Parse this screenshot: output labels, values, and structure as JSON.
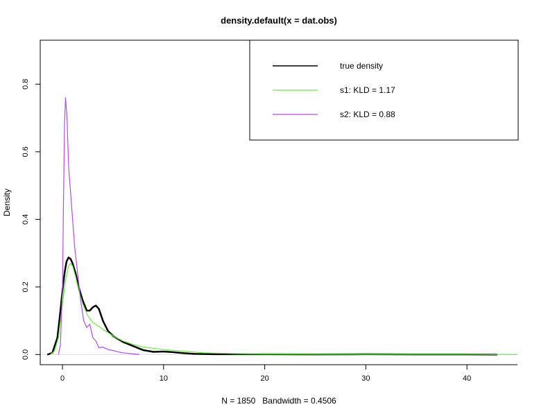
{
  "chart_data": {
    "type": "line",
    "title": "density.default(x = dat.obs)",
    "xlabel": "N = 1850   Bandwidth = 0.4506",
    "ylabel": "Density",
    "xlim": [
      -2.2,
      45
    ],
    "ylim": [
      -0.03,
      0.93
    ],
    "x_ticks": [
      0,
      10,
      20,
      30,
      40
    ],
    "y_ticks": [
      0.0,
      0.2,
      0.4,
      0.6,
      0.8
    ],
    "x_tick_labels": [
      "0",
      "10",
      "20",
      "30",
      "40"
    ],
    "y_tick_labels": [
      "0.0",
      "0.2",
      "0.4",
      "0.6",
      "0.8"
    ],
    "grid": false,
    "legend_position": "top-right",
    "series": [
      {
        "name": "true density",
        "color": "#000000",
        "line_width": 2.5,
        "points": [
          [
            -1.5,
            0.0
          ],
          [
            -1.0,
            0.005
          ],
          [
            -0.5,
            0.05
          ],
          [
            -0.2,
            0.13
          ],
          [
            0.0,
            0.19
          ],
          [
            0.2,
            0.24
          ],
          [
            0.4,
            0.275
          ],
          [
            0.6,
            0.287
          ],
          [
            0.8,
            0.283
          ],
          [
            1.0,
            0.27
          ],
          [
            1.3,
            0.24
          ],
          [
            1.6,
            0.2
          ],
          [
            2.0,
            0.16
          ],
          [
            2.4,
            0.13
          ],
          [
            2.7,
            0.13
          ],
          [
            3.0,
            0.14
          ],
          [
            3.3,
            0.145
          ],
          [
            3.6,
            0.135
          ],
          [
            4.0,
            0.1
          ],
          [
            4.5,
            0.07
          ],
          [
            5.0,
            0.055
          ],
          [
            6.0,
            0.037
          ],
          [
            7.0,
            0.025
          ],
          [
            8.0,
            0.013
          ],
          [
            9.0,
            0.008
          ],
          [
            10.0,
            0.009
          ],
          [
            11.0,
            0.007
          ],
          [
            12.0,
            0.004
          ],
          [
            13.0,
            0.002
          ],
          [
            15.0,
            0.001
          ],
          [
            20.0,
            0.001
          ],
          [
            25.0,
            0.0005
          ],
          [
            30.0,
            0.001
          ],
          [
            35.0,
            0.0005
          ],
          [
            40.0,
            0.0005
          ],
          [
            43.0,
            0.0
          ]
        ]
      },
      {
        "name": "s1: KLD = 1.17",
        "color": "#66ee44",
        "line_width": 1.2,
        "points": [
          [
            -1.2,
            0.0
          ],
          [
            -0.8,
            0.01
          ],
          [
            -0.4,
            0.05
          ],
          [
            0.0,
            0.15
          ],
          [
            0.3,
            0.22
          ],
          [
            0.6,
            0.262
          ],
          [
            0.8,
            0.27
          ],
          [
            1.0,
            0.262
          ],
          [
            1.3,
            0.23
          ],
          [
            1.6,
            0.19
          ],
          [
            2.0,
            0.15
          ],
          [
            2.5,
            0.115
          ],
          [
            3.0,
            0.095
          ],
          [
            4.0,
            0.075
          ],
          [
            5.0,
            0.055
          ],
          [
            6.0,
            0.04
          ],
          [
            7.0,
            0.03
          ],
          [
            8.0,
            0.022
          ],
          [
            10.0,
            0.015
          ],
          [
            12.0,
            0.01
          ],
          [
            14.0,
            0.005
          ],
          [
            17.0,
            0.003
          ],
          [
            20.0,
            0.002
          ],
          [
            25.0,
            0.001
          ],
          [
            30.0,
            0.001
          ],
          [
            40.0,
            0.001
          ],
          [
            45.0,
            0.0
          ]
        ]
      },
      {
        "name": "s2: KLD = 0.88",
        "color": "#b14ee8",
        "line_width": 1.2,
        "points": [
          [
            -0.4,
            0.0
          ],
          [
            -0.2,
            0.03
          ],
          [
            0.0,
            0.2
          ],
          [
            0.1,
            0.45
          ],
          [
            0.2,
            0.68
          ],
          [
            0.3,
            0.76
          ],
          [
            0.45,
            0.7
          ],
          [
            0.6,
            0.56
          ],
          [
            0.8,
            0.48
          ],
          [
            1.0,
            0.4
          ],
          [
            1.2,
            0.32
          ],
          [
            1.5,
            0.24
          ],
          [
            1.8,
            0.16
          ],
          [
            2.1,
            0.1
          ],
          [
            2.4,
            0.08
          ],
          [
            2.7,
            0.09
          ],
          [
            3.0,
            0.05
          ],
          [
            3.3,
            0.04
          ],
          [
            3.6,
            0.02
          ],
          [
            4.0,
            0.022
          ],
          [
            4.5,
            0.015
          ],
          [
            5.0,
            0.012
          ],
          [
            5.5,
            0.008
          ],
          [
            6.0,
            0.005
          ],
          [
            7.0,
            0.002
          ],
          [
            7.6,
            0.0
          ]
        ]
      }
    ]
  }
}
